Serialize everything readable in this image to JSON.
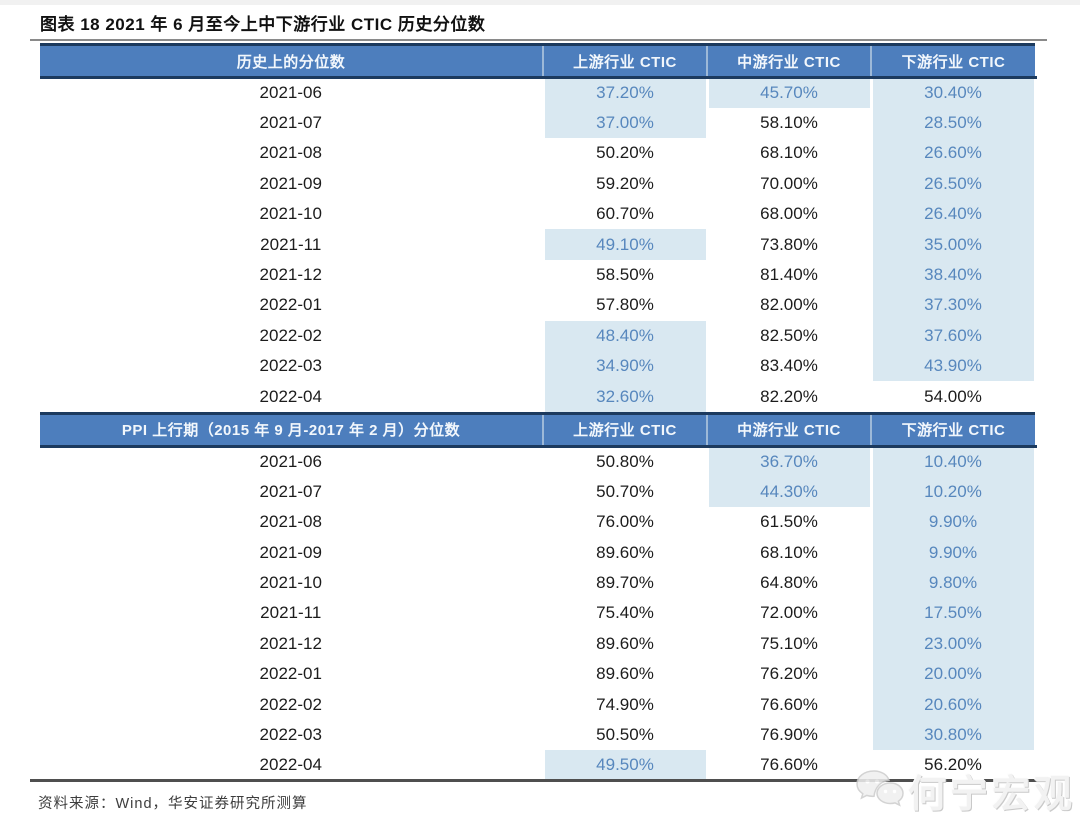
{
  "page": {
    "title": "图表 18 2021 年 6 月至今上中下游行业 CTIC 历史分位数",
    "source_note": "资料来源：Wind，华安证券研究所测算",
    "watermark": "何宁宏观"
  },
  "colors": {
    "header_bg": "#4d7ebd",
    "header_text": "#f2f7fc",
    "header_border": "#1c3a5e",
    "highlight_bg": "#d9e8f1",
    "highlight_text": "#5787bd",
    "value_text": "#1c1c1c",
    "rule_gray": "#8a8a8a"
  },
  "tables": [
    {
      "header": "历史上的分位数",
      "columns": [
        "上游行业 CTIC",
        "中游行业 CTIC",
        "下游行业 CTIC"
      ],
      "rows": [
        {
          "date": "2021-06",
          "cells": [
            {
              "v": "37.20%",
              "hl": true
            },
            {
              "v": "45.70%",
              "hl": true
            },
            {
              "v": "30.40%",
              "hl": true
            }
          ]
        },
        {
          "date": "2021-07",
          "cells": [
            {
              "v": "37.00%",
              "hl": true
            },
            {
              "v": "58.10%",
              "hl": false
            },
            {
              "v": "28.50%",
              "hl": true
            }
          ]
        },
        {
          "date": "2021-08",
          "cells": [
            {
              "v": "50.20%",
              "hl": false
            },
            {
              "v": "68.10%",
              "hl": false
            },
            {
              "v": "26.60%",
              "hl": true
            }
          ]
        },
        {
          "date": "2021-09",
          "cells": [
            {
              "v": "59.20%",
              "hl": false
            },
            {
              "v": "70.00%",
              "hl": false
            },
            {
              "v": "26.50%",
              "hl": true
            }
          ]
        },
        {
          "date": "2021-10",
          "cells": [
            {
              "v": "60.70%",
              "hl": false
            },
            {
              "v": "68.00%",
              "hl": false
            },
            {
              "v": "26.40%",
              "hl": true
            }
          ]
        },
        {
          "date": "2021-11",
          "cells": [
            {
              "v": "49.10%",
              "hl": true
            },
            {
              "v": "73.80%",
              "hl": false
            },
            {
              "v": "35.00%",
              "hl": true
            }
          ]
        },
        {
          "date": "2021-12",
          "cells": [
            {
              "v": "58.50%",
              "hl": false
            },
            {
              "v": "81.40%",
              "hl": false
            },
            {
              "v": "38.40%",
              "hl": true
            }
          ]
        },
        {
          "date": "2022-01",
          "cells": [
            {
              "v": "57.80%",
              "hl": false
            },
            {
              "v": "82.00%",
              "hl": false
            },
            {
              "v": "37.30%",
              "hl": true
            }
          ]
        },
        {
          "date": "2022-02",
          "cells": [
            {
              "v": "48.40%",
              "hl": true
            },
            {
              "v": "82.50%",
              "hl": false
            },
            {
              "v": "37.60%",
              "hl": true
            }
          ]
        },
        {
          "date": "2022-03",
          "cells": [
            {
              "v": "34.90%",
              "hl": true
            },
            {
              "v": "83.40%",
              "hl": false
            },
            {
              "v": "43.90%",
              "hl": true
            }
          ]
        },
        {
          "date": "2022-04",
          "cells": [
            {
              "v": "32.60%",
              "hl": true
            },
            {
              "v": "82.20%",
              "hl": false
            },
            {
              "v": "54.00%",
              "hl": false
            }
          ]
        }
      ]
    },
    {
      "header": "PPI 上行期（2015 年 9 月-2017 年 2 月）分位数",
      "columns": [
        "上游行业 CTIC",
        "中游行业 CTIC",
        "下游行业 CTIC"
      ],
      "rows": [
        {
          "date": "2021-06",
          "cells": [
            {
              "v": "50.80%",
              "hl": false
            },
            {
              "v": "36.70%",
              "hl": true
            },
            {
              "v": "10.40%",
              "hl": true
            }
          ]
        },
        {
          "date": "2021-07",
          "cells": [
            {
              "v": "50.70%",
              "hl": false
            },
            {
              "v": "44.30%",
              "hl": true
            },
            {
              "v": "10.20%",
              "hl": true
            }
          ]
        },
        {
          "date": "2021-08",
          "cells": [
            {
              "v": "76.00%",
              "hl": false
            },
            {
              "v": "61.50%",
              "hl": false
            },
            {
              "v": "9.90%",
              "hl": true
            }
          ]
        },
        {
          "date": "2021-09",
          "cells": [
            {
              "v": "89.60%",
              "hl": false
            },
            {
              "v": "68.10%",
              "hl": false
            },
            {
              "v": "9.90%",
              "hl": true
            }
          ]
        },
        {
          "date": "2021-10",
          "cells": [
            {
              "v": "89.70%",
              "hl": false
            },
            {
              "v": "64.80%",
              "hl": false
            },
            {
              "v": "9.80%",
              "hl": true
            }
          ]
        },
        {
          "date": "2021-11",
          "cells": [
            {
              "v": "75.40%",
              "hl": false
            },
            {
              "v": "72.00%",
              "hl": false
            },
            {
              "v": "17.50%",
              "hl": true
            }
          ]
        },
        {
          "date": "2021-12",
          "cells": [
            {
              "v": "89.60%",
              "hl": false
            },
            {
              "v": "75.10%",
              "hl": false
            },
            {
              "v": "23.00%",
              "hl": true
            }
          ]
        },
        {
          "date": "2022-01",
          "cells": [
            {
              "v": "89.60%",
              "hl": false
            },
            {
              "v": "76.20%",
              "hl": false
            },
            {
              "v": "20.00%",
              "hl": true
            }
          ]
        },
        {
          "date": "2022-02",
          "cells": [
            {
              "v": "74.90%",
              "hl": false
            },
            {
              "v": "76.60%",
              "hl": false
            },
            {
              "v": "20.60%",
              "hl": true
            }
          ]
        },
        {
          "date": "2022-03",
          "cells": [
            {
              "v": "50.50%",
              "hl": false
            },
            {
              "v": "76.90%",
              "hl": false
            },
            {
              "v": "30.80%",
              "hl": true
            }
          ]
        },
        {
          "date": "2022-04",
          "cells": [
            {
              "v": "49.50%",
              "hl": true
            },
            {
              "v": "76.60%",
              "hl": false
            },
            {
              "v": "56.20%",
              "hl": false
            }
          ]
        }
      ]
    }
  ]
}
